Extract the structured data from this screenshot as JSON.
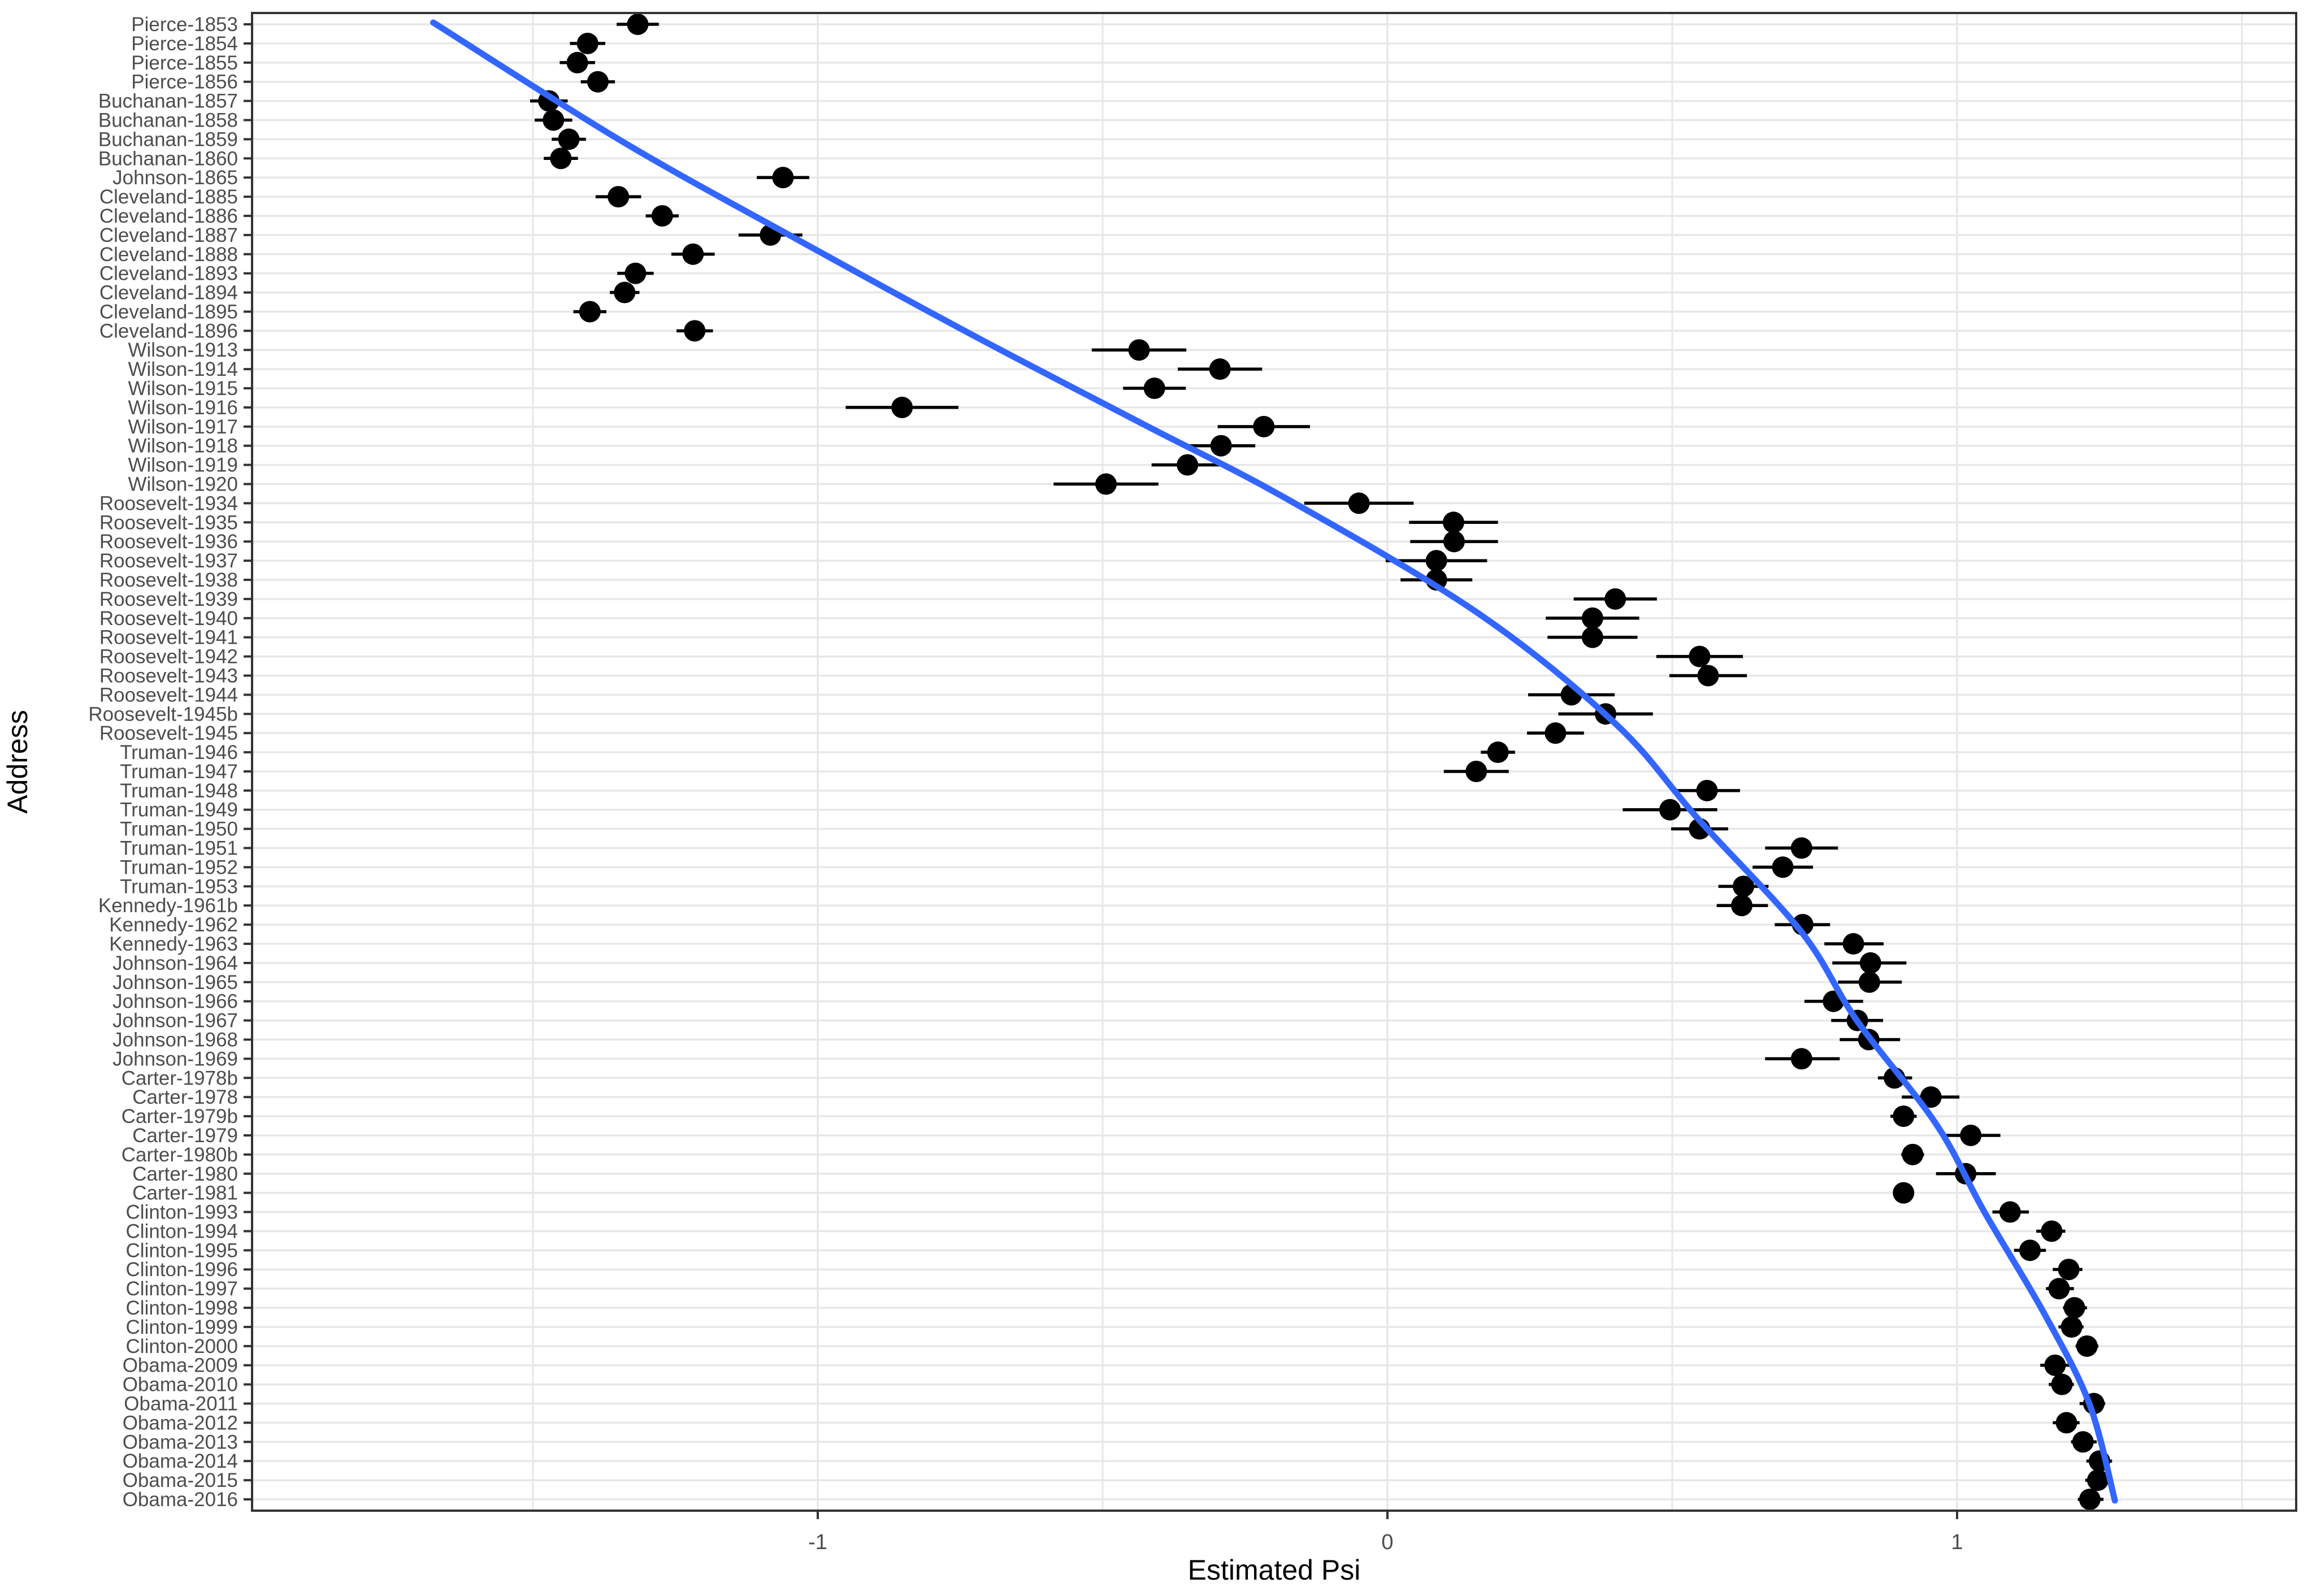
{
  "chart_data": {
    "type": "scatter",
    "subtype": "horizontal-dotplot-with-error-bars-and-smooth-line",
    "title": "",
    "xlabel": "Estimated Psi",
    "ylabel": "Address",
    "x_ticks": [
      "-1",
      "0",
      "1"
    ],
    "x_tick_values": [
      -1,
      0,
      1
    ],
    "x_minor_gridlines": [
      -1.5,
      -0.5,
      0.5,
      1.5
    ],
    "xlim": [
      -1.99,
      1.6
    ],
    "grid": "on",
    "legend": "none",
    "categories": [
      "Pierce-1853",
      "Pierce-1854",
      "Pierce-1855",
      "Pierce-1856",
      "Buchanan-1857",
      "Buchanan-1858",
      "Buchanan-1859",
      "Buchanan-1860",
      "Johnson-1865",
      "Cleveland-1885",
      "Cleveland-1886",
      "Cleveland-1887",
      "Cleveland-1888",
      "Cleveland-1893",
      "Cleveland-1894",
      "Cleveland-1895",
      "Cleveland-1896",
      "Wilson-1913",
      "Wilson-1914",
      "Wilson-1915",
      "Wilson-1916",
      "Wilson-1917",
      "Wilson-1918",
      "Wilson-1919",
      "Wilson-1920",
      "Roosevelt-1934",
      "Roosevelt-1935",
      "Roosevelt-1936",
      "Roosevelt-1937",
      "Roosevelt-1938",
      "Roosevelt-1939",
      "Roosevelt-1940",
      "Roosevelt-1941",
      "Roosevelt-1942",
      "Roosevelt-1943",
      "Roosevelt-1944",
      "Roosevelt-1945b",
      "Roosevelt-1945",
      "Truman-1946",
      "Truman-1947",
      "Truman-1948",
      "Truman-1949",
      "Truman-1950",
      "Truman-1951",
      "Truman-1952",
      "Truman-1953",
      "Kennedy-1961b",
      "Kennedy-1962",
      "Kennedy-1963",
      "Johnson-1964",
      "Johnson-1965",
      "Johnson-1966",
      "Johnson-1967",
      "Johnson-1968",
      "Johnson-1969",
      "Carter-1978b",
      "Carter-1978",
      "Carter-1979b",
      "Carter-1979",
      "Carter-1980b",
      "Carter-1980",
      "Carter-1981",
      "Clinton-1993",
      "Clinton-1994",
      "Clinton-1995",
      "Clinton-1996",
      "Clinton-1997",
      "Clinton-1998",
      "Clinton-1999",
      "Clinton-2000",
      "Obama-2009",
      "Obama-2010",
      "Obama-2011",
      "Obama-2012",
      "Obama-2013",
      "Obama-2014",
      "Obama-2015",
      "Obama-2016"
    ],
    "series": [
      {
        "name": "estimate",
        "values": [
          -1.316,
          -1.404,
          -1.422,
          -1.386,
          -1.472,
          -1.464,
          -1.437,
          -1.451,
          -1.061,
          -1.35,
          -1.273,
          -1.083,
          -1.219,
          -1.32,
          -1.339,
          -1.4,
          -1.216,
          -0.436,
          -0.294,
          -0.409,
          -0.852,
          -0.217,
          -0.292,
          -0.351,
          -0.494,
          -0.05,
          0.116,
          0.117,
          0.086,
          0.086,
          0.4,
          0.36,
          0.36,
          0.548,
          0.563,
          0.323,
          0.383,
          0.295,
          0.194,
          0.156,
          0.561,
          0.496,
          0.548,
          0.727,
          0.694,
          0.625,
          0.622,
          0.729,
          0.818,
          0.848,
          0.846,
          0.783,
          0.825,
          0.845,
          0.727,
          0.89,
          0.954,
          0.906,
          1.024,
          0.922,
          1.015,
          0.906,
          1.093,
          1.166,
          1.128,
          1.196,
          1.179,
          1.206,
          1.201,
          1.228,
          1.172,
          1.184,
          1.24,
          1.192,
          1.221,
          1.25,
          1.247,
          1.233
        ]
      },
      {
        "name": "ci_lower",
        "values": [
          -1.353,
          -1.435,
          -1.453,
          -1.416,
          -1.505,
          -1.497,
          -1.467,
          -1.481,
          -1.107,
          -1.39,
          -1.302,
          -1.139,
          -1.257,
          -1.352,
          -1.365,
          -1.429,
          -1.248,
          -0.519,
          -0.368,
          -0.464,
          -0.951,
          -0.298,
          -0.352,
          -0.414,
          -0.586,
          -0.146,
          0.038,
          0.04,
          -0.003,
          0.023,
          0.327,
          0.278,
          0.281,
          0.472,
          0.495,
          0.247,
          0.3,
          0.245,
          0.164,
          0.099,
          0.503,
          0.413,
          0.498,
          0.663,
          0.641,
          0.581,
          0.578,
          0.68,
          0.767,
          0.781,
          0.791,
          0.732,
          0.779,
          0.794,
          0.663,
          0.861,
          0.903,
          0.883,
          0.979,
          0.902,
          0.963,
          0.89,
          1.062,
          1.139,
          1.1,
          1.168,
          1.156,
          1.186,
          1.178,
          1.208,
          1.146,
          1.161,
          1.215,
          1.168,
          1.2,
          1.227,
          1.225,
          1.212
        ]
      },
      {
        "name": "ci_upper",
        "values": [
          -1.279,
          -1.373,
          -1.391,
          -1.356,
          -1.439,
          -1.431,
          -1.407,
          -1.421,
          -1.015,
          -1.31,
          -1.244,
          -1.027,
          -1.181,
          -1.288,
          -1.313,
          -1.371,
          -1.184,
          -0.353,
          -0.22,
          -0.354,
          -0.753,
          -0.136,
          -0.232,
          -0.288,
          -0.402,
          0.046,
          0.194,
          0.194,
          0.175,
          0.149,
          0.473,
          0.442,
          0.439,
          0.624,
          0.631,
          0.399,
          0.466,
          0.345,
          0.224,
          0.213,
          0.619,
          0.579,
          0.598,
          0.791,
          0.747,
          0.669,
          0.668,
          0.777,
          0.871,
          0.911,
          0.903,
          0.835,
          0.87,
          0.9,
          0.794,
          0.921,
          1.004,
          0.929,
          1.076,
          0.942,
          1.068,
          0.922,
          1.126,
          1.19,
          1.156,
          1.22,
          1.205,
          1.228,
          1.222,
          1.248,
          1.203,
          1.205,
          1.26,
          1.215,
          1.245,
          1.272,
          1.268,
          1.257
        ]
      }
    ],
    "smooth_line_points": [
      {
        "row": 0.91,
        "psi": -1.675
      },
      {
        "row": 7.1,
        "psi": -1.344
      },
      {
        "row": 12.15,
        "psi": -1.041
      },
      {
        "row": 17.1,
        "psi": -0.736
      },
      {
        "row": 21.9,
        "psi": -0.427
      },
      {
        "row": 25.7,
        "psi": -0.181
      },
      {
        "row": 31.7,
        "psi": 0.157
      },
      {
        "row": 37.5,
        "psi": 0.4
      },
      {
        "row": 42.5,
        "psi": 0.546
      },
      {
        "row": 48.35,
        "psi": 0.726
      },
      {
        "row": 53.0,
        "psi": 0.824
      },
      {
        "row": 58.4,
        "psi": 0.963
      },
      {
        "row": 63.0,
        "psi": 1.048
      },
      {
        "row": 68.3,
        "psi": 1.153
      },
      {
        "row": 73.0,
        "psi": 1.232
      },
      {
        "row": 78.06,
        "psi": 1.277
      }
    ],
    "colors": {
      "point": "#000000",
      "error_bar": "#000000",
      "smooth_line": "#3366FF",
      "gridline": "#E7E7E7",
      "panel_border": "#333333",
      "tick_mark": "#333333",
      "tick_label": "#4D4D4D",
      "axis_title": "#000000",
      "background": "#FFFFFF"
    }
  }
}
